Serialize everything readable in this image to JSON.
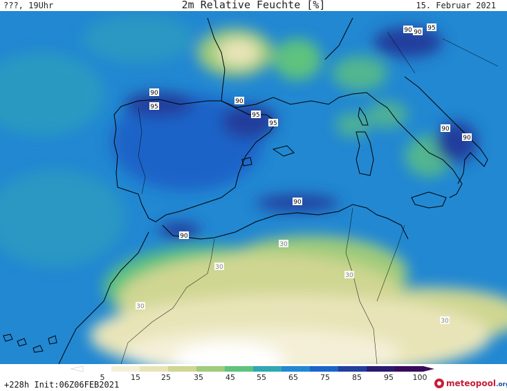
{
  "header": {
    "left": "???, 19Uhr",
    "title": "2m Relative Feuchte [%]",
    "right": "15. Februar 2021"
  },
  "footer": {
    "init": "+228h  Init:06Z06FEB2021",
    "logo_icon": "meteopool-drop-icon",
    "logo_main": "meteopool",
    "logo_suffix": ".org"
  },
  "colorbar": {
    "ticks": [
      "5",
      "15",
      "25",
      "35",
      "45",
      "55",
      "65",
      "75",
      "85",
      "95",
      "100"
    ],
    "colors": [
      "#ffffff",
      "#f4f0d8",
      "#e8e4b8",
      "#cfd691",
      "#9fcb7a",
      "#5fc27e",
      "#2fa8b4",
      "#2288d2",
      "#1d64c8",
      "#233e9c",
      "#2a1a6e",
      "#3a0a5a"
    ]
  },
  "contour_labels": [
    {
      "text": "90"
    },
    {
      "text": "90"
    },
    {
      "text": "95"
    },
    {
      "text": "90"
    },
    {
      "text": "95"
    },
    {
      "text": "90"
    },
    {
      "text": "95"
    },
    {
      "text": "95"
    },
    {
      "text": "90"
    },
    {
      "text": "90"
    },
    {
      "text": "90"
    },
    {
      "text": "90"
    },
    {
      "text": "30"
    },
    {
      "text": "30"
    },
    {
      "text": "30"
    },
    {
      "text": "30"
    },
    {
      "text": "30"
    }
  ]
}
